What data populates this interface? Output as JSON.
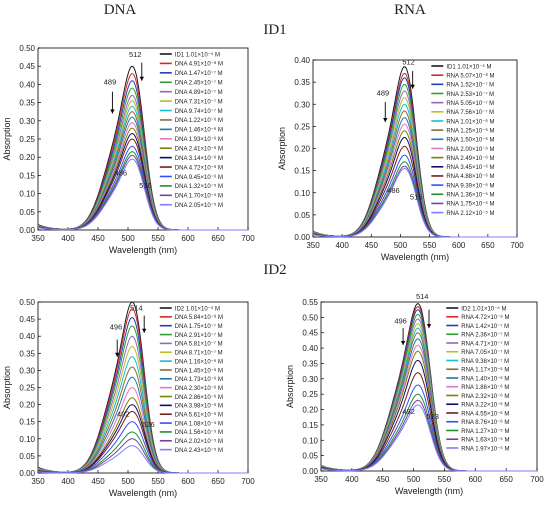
{
  "headers": {
    "col1": "DNA",
    "col2": "RNA",
    "row1": "ID1",
    "row2": "ID2"
  },
  "chart_data": [
    {
      "type": "line",
      "panel": "ID1-DNA",
      "xlabel": "Wavelength (nm)",
      "ylabel": "Absorption",
      "xlim": [
        350,
        700
      ],
      "ylim": [
        0,
        0.5
      ],
      "xticks": [
        350,
        400,
        450,
        500,
        550,
        600,
        650,
        700
      ],
      "yticks": [
        0.0,
        0.05,
        0.1,
        0.15,
        0.2,
        0.25,
        0.3,
        0.35,
        0.4,
        0.45,
        0.5
      ],
      "legend": "top-right",
      "peak_labels": [
        {
          "text": "512",
          "x": 512,
          "y": 0.475
        },
        {
          "text": "489",
          "x": 470,
          "y": 0.4
        },
        {
          "text": "486",
          "x": 488,
          "y": 0.15
        },
        {
          "text": "516",
          "x": 529,
          "y": 0.115
        }
      ],
      "arrows": [
        {
          "x": 474,
          "y_from": 0.38,
          "y_to": 0.32
        },
        {
          "x": 523,
          "y_from": 0.46,
          "y_to": 0.41
        }
      ],
      "series": [
        {
          "name": "ID1  1.01×10⁻⁵ M",
          "color": "#1a1a1a",
          "peak": 0.45
        },
        {
          "name": "DNA 4.91×10⁻⁸ M",
          "color": "#d62728",
          "peak": 0.43
        },
        {
          "name": "DNA 1.47×10⁻⁷ M",
          "color": "#1f3fbf",
          "peak": 0.41
        },
        {
          "name": "DNA 2.45×10⁻⁷ M",
          "color": "#2ca02c",
          "peak": 0.39
        },
        {
          "name": "DNA 4.89×10⁻⁷ M",
          "color": "#9467bd",
          "peak": 0.37
        },
        {
          "name": "DNA 7.31×10⁻⁷ M",
          "color": "#bcbd22",
          "peak": 0.355
        },
        {
          "name": "DNA 9.74×10⁻⁷ M",
          "color": "#17becf",
          "peak": 0.34
        },
        {
          "name": "DNA 1.22×10⁻⁶ M",
          "color": "#8c6d31",
          "peak": 0.325
        },
        {
          "name": "DNA 1.46×10⁻⁶ M",
          "color": "#1f77b4",
          "peak": 0.31
        },
        {
          "name": "DNA 1.93×10⁻⁶ M",
          "color": "#e377c2",
          "peak": 0.295
        },
        {
          "name": "DNA 2.41×10⁻⁶ M",
          "color": "#7f7f00",
          "peak": 0.28
        },
        {
          "name": "DNA 3.14×10⁻⁶ M",
          "color": "#0b0b6b",
          "peak": 0.265
        },
        {
          "name": "DNA 4.72×10⁻⁶ M",
          "color": "#7b1c1c",
          "peak": 0.25
        },
        {
          "name": "DNA 9.45×10⁻⁶ M",
          "color": "#2f4fff",
          "peak": 0.23
        },
        {
          "name": "DNA 1.32×10⁻⁵ M",
          "color": "#1f8f2f",
          "peak": 0.215
        },
        {
          "name": "DNA 1.70×10⁻⁵ M",
          "color": "#7a3f9f",
          "peak": 0.205
        },
        {
          "name": "DNA 2.05×10⁻⁵ M",
          "color": "#7f7fff",
          "peak": 0.195
        }
      ]
    },
    {
      "type": "line",
      "panel": "ID1-RNA",
      "xlabel": "Wavelength (nm)",
      "ylabel": "Absorption",
      "xlim": [
        350,
        700
      ],
      "ylim": [
        0,
        0.4
      ],
      "xticks": [
        350,
        400,
        450,
        500,
        550,
        600,
        650,
        700
      ],
      "yticks": [
        0.0,
        0.05,
        0.1,
        0.15,
        0.2,
        0.25,
        0.3,
        0.35,
        0.4
      ],
      "legend": "top-right",
      "peak_labels": [
        {
          "text": "512",
          "x": 514,
          "y": 0.39
        },
        {
          "text": "489",
          "x": 470,
          "y": 0.32
        },
        {
          "text": "486",
          "x": 488,
          "y": 0.1
        },
        {
          "text": "515",
          "x": 527,
          "y": 0.085
        }
      ],
      "arrows": [
        {
          "x": 474,
          "y_from": 0.305,
          "y_to": 0.26
        },
        {
          "x": 521,
          "y_from": 0.375,
          "y_to": 0.335
        }
      ],
      "series": [
        {
          "name": "ID1  1.01×10⁻⁵ M",
          "color": "#1a1a1a",
          "peak": 0.385
        },
        {
          "name": "RNA 5.07×10⁻⁸ M",
          "color": "#d62728",
          "peak": 0.37
        },
        {
          "name": "RNA 1.52×10⁻⁷ M",
          "color": "#1f3fbf",
          "peak": 0.36
        },
        {
          "name": "RNA 2.53×10⁻⁷ M",
          "color": "#2ca02c",
          "peak": 0.345
        },
        {
          "name": "RNA 5.05×10⁻⁷ M",
          "color": "#9467bd",
          "peak": 0.33
        },
        {
          "name": "RNA 7.56×10⁻⁷ M",
          "color": "#bcbd22",
          "peak": 0.315
        },
        {
          "name": "RNA 1.01×10⁻⁶ M",
          "color": "#17becf",
          "peak": 0.3
        },
        {
          "name": "RNA 1.25×10⁻⁶ M",
          "color": "#8c6d31",
          "peak": 0.285
        },
        {
          "name": "RNA 1.50×10⁻⁶ M",
          "color": "#1f77b4",
          "peak": 0.27
        },
        {
          "name": "RNA 2.00×10⁻⁶ M",
          "color": "#e377c2",
          "peak": 0.255
        },
        {
          "name": "RNA 2.49×10⁻⁶ M",
          "color": "#7f7f00",
          "peak": 0.24
        },
        {
          "name": "RNA 3.45×10⁻⁶ M",
          "color": "#0b0b6b",
          "peak": 0.225
        },
        {
          "name": "RNA 4.88×10⁻⁶ M",
          "color": "#7b1c1c",
          "peak": 0.205
        },
        {
          "name": "RNA 9.39×10⁻⁶ M",
          "color": "#2f4fff",
          "peak": 0.185
        },
        {
          "name": "RNA 1.36×10⁻⁵ M",
          "color": "#1f8f2f",
          "peak": 0.17
        },
        {
          "name": "RNA 1.75×10⁻⁵ M",
          "color": "#7a3f9f",
          "peak": 0.16
        },
        {
          "name": "RNA 2.12×10⁻⁵ M",
          "color": "#7f7fff",
          "peak": 0.155
        }
      ]
    },
    {
      "type": "line",
      "panel": "ID2-DNA",
      "xlabel": "Wavelength (nm)",
      "ylabel": "Absorption",
      "xlim": [
        350,
        700
      ],
      "ylim": [
        0,
        0.5
      ],
      "xticks": [
        350,
        400,
        450,
        500,
        550,
        600,
        650,
        700
      ],
      "yticks": [
        0.0,
        0.05,
        0.1,
        0.15,
        0.2,
        0.25,
        0.3,
        0.35,
        0.4,
        0.45,
        0.5
      ],
      "legend": "top-right",
      "peak_labels": [
        {
          "text": "514",
          "x": 514,
          "y": 0.475
        },
        {
          "text": "496",
          "x": 480,
          "y": 0.42
        },
        {
          "text": "492",
          "x": 492,
          "y": 0.165
        },
        {
          "text": "526",
          "x": 534,
          "y": 0.135
        }
      ],
      "arrows": [
        {
          "x": 482,
          "y_from": 0.39,
          "y_to": 0.34
        },
        {
          "x": 527,
          "y_from": 0.46,
          "y_to": 0.41
        }
      ],
      "series": [
        {
          "name": "ID2  1.01×10⁻⁵ M",
          "color": "#1a1a1a",
          "peak": 0.5
        },
        {
          "name": "DNA 5.84×10⁻⁸ M",
          "color": "#d62728",
          "peak": 0.48
        },
        {
          "name": "DNA 1.75×10⁻⁷ M",
          "color": "#1f3fbf",
          "peak": 0.455
        },
        {
          "name": "DNA 2.91×10⁻⁷ M",
          "color": "#2ca02c",
          "peak": 0.43
        },
        {
          "name": "DNA 5.81×10⁻⁷ M",
          "color": "#9467bd",
          "peak": 0.4
        },
        {
          "name": "DNA 8.71×10⁻⁷ M",
          "color": "#bcbd22",
          "peak": 0.37
        },
        {
          "name": "DNA 1.16×10⁻⁶ M",
          "color": "#17becf",
          "peak": 0.34
        },
        {
          "name": "DNA 1.45×10⁻⁶ M",
          "color": "#8c6d31",
          "peak": 0.31
        },
        {
          "name": "DNA 1.73×10⁻⁶ M",
          "color": "#1f77b4",
          "peak": 0.28
        },
        {
          "name": "DNA 2.30×10⁻⁶ M",
          "color": "#e377c2",
          "peak": 0.25
        },
        {
          "name": "DNA 2.86×10⁻⁶ M",
          "color": "#7f7f00",
          "peak": 0.22
        },
        {
          "name": "DNA 3.98×10⁻⁶ M",
          "color": "#0b0b6b",
          "peak": 0.2
        },
        {
          "name": "DNA 5.61×10⁻⁶ M",
          "color": "#7b1c1c",
          "peak": 0.18
        },
        {
          "name": "DNA 1.08×10⁻⁵ M",
          "color": "#2f4fff",
          "peak": 0.15
        },
        {
          "name": "DNA 1.56×10⁻⁵ M",
          "color": "#1f8f2f",
          "peak": 0.12
        },
        {
          "name": "DNA 2.02×10⁻⁵ M",
          "color": "#7a3f9f",
          "peak": 0.1
        },
        {
          "name": "DNA 2.43×10⁻⁵ M",
          "color": "#7f7fff",
          "peak": 0.08
        }
      ]
    },
    {
      "type": "line",
      "panel": "ID2-RNA",
      "xlabel": "Wavelength (nm)",
      "ylabel": "Absorption",
      "xlim": [
        350,
        700
      ],
      "ylim": [
        0,
        0.55
      ],
      "xticks": [
        350,
        400,
        450,
        500,
        550,
        600,
        650,
        700
      ],
      "yticks": [
        0.0,
        0.05,
        0.1,
        0.15,
        0.2,
        0.25,
        0.3,
        0.35,
        0.4,
        0.45,
        0.5,
        0.55
      ],
      "legend": "top-right",
      "peak_labels": [
        {
          "text": "514",
          "x": 514,
          "y": 0.56
        },
        {
          "text": "496",
          "x": 479,
          "y": 0.48
        },
        {
          "text": "492",
          "x": 492,
          "y": 0.185
        },
        {
          "text": "523",
          "x": 531,
          "y": 0.17
        }
      ],
      "arrows": [
        {
          "x": 483,
          "y_from": 0.465,
          "y_to": 0.41
        },
        {
          "x": 525,
          "y_from": 0.525,
          "y_to": 0.465
        }
      ],
      "series": [
        {
          "name": "ID2  1.01×10⁻⁵ M",
          "color": "#1a1a1a",
          "peak": 0.545
        },
        {
          "name": "RNA 4.72×10⁻⁸ M",
          "color": "#d62728",
          "peak": 0.535
        },
        {
          "name": "RNA 1.42×10⁻⁷ M",
          "color": "#1f3fbf",
          "peak": 0.525
        },
        {
          "name": "RNA 2.36×10⁻⁷ M",
          "color": "#2ca02c",
          "peak": 0.51
        },
        {
          "name": "RNA 4.71×10⁻⁷ M",
          "color": "#9467bd",
          "peak": 0.495
        },
        {
          "name": "RNA 7.05×10⁻⁷ M",
          "color": "#bcbd22",
          "peak": 0.48
        },
        {
          "name": "RNA 9.38×10⁻⁷ M",
          "color": "#17becf",
          "peak": 0.465
        },
        {
          "name": "RNA 1.17×10⁻⁶ M",
          "color": "#8c6d31",
          "peak": 0.45
        },
        {
          "name": "RNA 1.40×10⁻⁶ M",
          "color": "#1f77b4",
          "peak": 0.43
        },
        {
          "name": "RNA 1.86×10⁻⁶ M",
          "color": "#e377c2",
          "peak": 0.41
        },
        {
          "name": "RNA 2.32×10⁻⁶ M",
          "color": "#7f7f00",
          "peak": 0.39
        },
        {
          "name": "RNA 3.22×10⁻⁶ M",
          "color": "#0b0b6b",
          "peak": 0.36
        },
        {
          "name": "RNA 4.55×10⁻⁶ M",
          "color": "#7b1c1c",
          "peak": 0.32
        },
        {
          "name": "RNA 8.76×10⁻⁶ M",
          "color": "#2f4fff",
          "peak": 0.28
        },
        {
          "name": "RNA 1.27×10⁻⁵ M",
          "color": "#1f8f2f",
          "peak": 0.25
        },
        {
          "name": "RNA 1.63×10⁻⁵ M",
          "color": "#7a3f9f",
          "peak": 0.23
        },
        {
          "name": "RNA 1.97×10⁻⁵ M",
          "color": "#7f7fff",
          "peak": 0.215
        }
      ]
    }
  ]
}
